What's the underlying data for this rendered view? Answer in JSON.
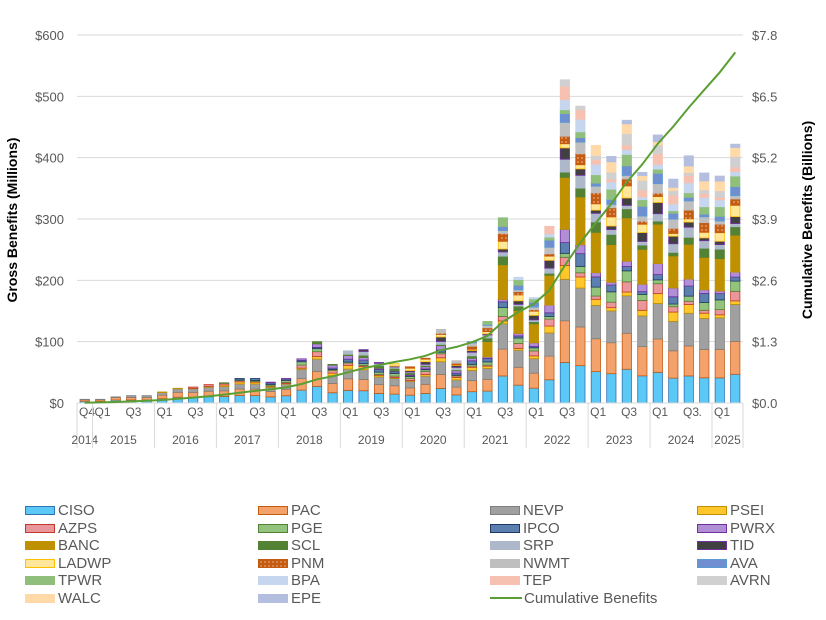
{
  "chart_data": {
    "type": "bar",
    "stacked": true,
    "title": "",
    "ylabel": "Gross Benefits (Millions)",
    "y2label": "Cumulative Benefits (Billions)",
    "ylim": [
      0,
      600
    ],
    "y2lim": [
      0,
      7.8
    ],
    "yticks": [
      "$0",
      "$100",
      "$200",
      "$300",
      "$400",
      "$500",
      "$600"
    ],
    "y2ticks": [
      "$0.0",
      "$1.3",
      "$2.6",
      "$3.9",
      "$5.2",
      "$6.5",
      "$7.8"
    ],
    "grid": true,
    "legend_position": "bottom",
    "x_quarter_labels": [
      "Q4",
      "Q1",
      "",
      "Q3",
      "",
      "Q1",
      "",
      "Q3",
      "",
      "Q1",
      "",
      "Q3",
      "",
      "Q1",
      "",
      "Q3",
      "",
      "Q1",
      "",
      "Q3",
      "",
      "Q1",
      "",
      "Q3",
      "",
      "Q1",
      "",
      "Q3",
      "",
      "Q1",
      "",
      "Q3",
      "",
      "Q1",
      "",
      "Q3",
      "",
      "Q1",
      "",
      "Q3",
      ".",
      "Q1",
      ""
    ],
    "x_years": [
      {
        "label": "2014",
        "quarters": 1
      },
      {
        "label": "2015",
        "quarters": 4
      },
      {
        "label": "2016",
        "quarters": 4
      },
      {
        "label": "2017",
        "quarters": 4
      },
      {
        "label": "2018",
        "quarters": 4
      },
      {
        "label": "2019",
        "quarters": 4
      },
      {
        "label": "2020",
        "quarters": 4
      },
      {
        "label": "2021",
        "quarters": 4
      },
      {
        "label": "2022",
        "quarters": 4
      },
      {
        "label": "2023",
        "quarters": 4
      },
      {
        "label": "2024",
        "quarters": 4
      },
      {
        "label": "2025",
        "quarters": 2
      }
    ],
    "quarter_totals_millions": [
      6,
      6,
      10,
      12,
      12,
      18,
      24,
      26,
      30,
      33,
      40,
      40,
      34,
      40,
      72,
      100,
      63,
      85,
      87,
      66,
      64,
      59,
      73,
      120,
      69,
      100,
      133,
      302,
      205,
      172,
      288,
      527,
      484,
      420,
      402,
      461,
      376,
      437,
      365,
      403,
      375,
      370,
      422
    ],
    "cumulative_billions_end": 7.4,
    "series": [
      {
        "name": "CISO",
        "color": "#5BC8F5",
        "border": "#2E75B6"
      },
      {
        "name": "PAC",
        "color": "#F4A26B",
        "border": "#C55A11"
      },
      {
        "name": "NEVP",
        "color": "#A0A0A0",
        "border": "#7F7F7F"
      },
      {
        "name": "PSEI",
        "color": "#FFC72C",
        "border": "#BF9000"
      },
      {
        "name": "AZPS",
        "color": "#E9979B",
        "border": "#C0392B"
      },
      {
        "name": "PGE",
        "color": "#93C47D",
        "border": "#548235"
      },
      {
        "name": "IPCO",
        "color": "#5B7FAE",
        "border": "#1F3864"
      },
      {
        "name": "PWRX",
        "color": "#B18FD6",
        "border": "#7030A0"
      },
      {
        "name": "BANC",
        "color": "#BF9000",
        "border": "#BF9000"
      },
      {
        "name": "SCL",
        "color": "#548235",
        "border": "#548235"
      },
      {
        "name": "SRP",
        "color": "#ADB9CA",
        "border": "#ADB9CA"
      },
      {
        "name": "TID",
        "color": "#404040",
        "border": "#7030A0"
      },
      {
        "name": "LADWP",
        "color": "#FFE699",
        "border": "#FFC000"
      },
      {
        "name": "PNM",
        "color": "#C55A11",
        "border": "#C55A11",
        "pattern": "dots"
      },
      {
        "name": "NWMT",
        "color": "#BFBFBF",
        "border": "#BFBFBF"
      },
      {
        "name": "AVA",
        "color": "#6F8FD0",
        "border": "#5B9BD5"
      },
      {
        "name": "TPWR",
        "color": "#8FBF7A",
        "border": "#8FBF7A"
      },
      {
        "name": "BPA",
        "color": "#C5D6EE",
        "border": "#C5D6EE"
      },
      {
        "name": "TEP",
        "color": "#F6C1B0",
        "border": "#F6C1B0"
      },
      {
        "name": "AVRN",
        "color": "#D0D0D0",
        "border": "#D0D0D0"
      },
      {
        "name": "WALC",
        "color": "#FFD9A8",
        "border": "#FFD9A8"
      },
      {
        "name": "EPE",
        "color": "#B4BFE0",
        "border": "#B4BFE0"
      }
    ],
    "line_series": {
      "name": "Cumulative Benefits",
      "color": "#5a9e34"
    }
  },
  "legend": {
    "columns": [
      [
        "CISO",
        "AZPS",
        "BANC",
        "LADWP",
        "TPWR",
        "WALC"
      ],
      [
        "PAC",
        "PGE",
        "SCL",
        "PNM",
        "BPA",
        "EPE"
      ],
      [
        "NEVP",
        "IPCO",
        "SRP",
        "NWMT",
        "TEP",
        "Cumulative Benefits"
      ],
      [
        "PSEI",
        "PWRX",
        "TID",
        "AVA",
        "AVRN"
      ]
    ]
  }
}
